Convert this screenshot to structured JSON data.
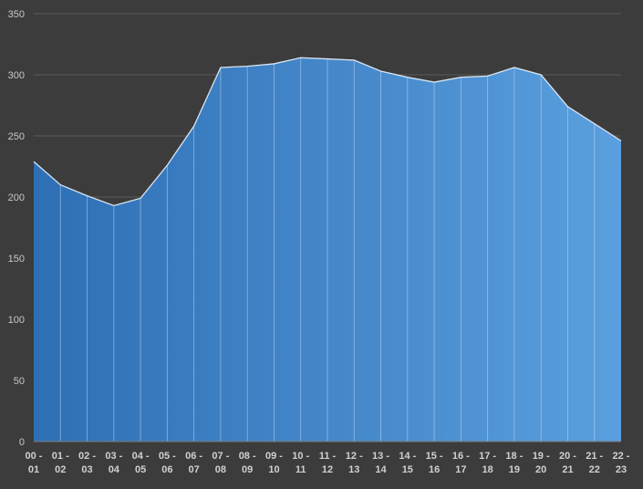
{
  "chart_data": {
    "type": "area",
    "title": "",
    "xlabel": "",
    "ylabel": "",
    "ylim": [
      0,
      350
    ],
    "yticks": [
      0,
      50,
      100,
      150,
      200,
      250,
      300,
      350
    ],
    "grid": true,
    "legend": "none",
    "categories": [
      [
        "00 -",
        "01"
      ],
      [
        "01 -",
        "02"
      ],
      [
        "02 -",
        "03"
      ],
      [
        "03 -",
        "04"
      ],
      [
        "04 -",
        "05"
      ],
      [
        "05 -",
        "06"
      ],
      [
        "06 -",
        "07"
      ],
      [
        "07 -",
        "08"
      ],
      [
        "08 -",
        "09"
      ],
      [
        "09 -",
        "10"
      ],
      [
        "10 -",
        "11"
      ],
      [
        "11 -",
        "12"
      ],
      [
        "12 -",
        "13"
      ],
      [
        "13 -",
        "14"
      ],
      [
        "14 -",
        "15"
      ],
      [
        "15 -",
        "16"
      ],
      [
        "16 -",
        "17"
      ],
      [
        "17 -",
        "18"
      ],
      [
        "18 -",
        "19"
      ],
      [
        "19 -",
        "20"
      ],
      [
        "20 -",
        "21"
      ],
      [
        "21 -",
        "22"
      ],
      [
        "22 -",
        "23"
      ]
    ],
    "values": [
      229,
      210,
      201,
      193,
      199,
      226,
      258,
      306,
      307,
      309,
      314,
      313,
      312,
      303,
      298,
      294,
      298,
      299,
      306,
      300,
      274,
      260,
      246
    ],
    "colors": {
      "background": "#3c3c3c",
      "fill_start": "#2e6fb5",
      "fill_end": "#5a9fde",
      "line": "#d8e4f2",
      "gridline": "#5a5a5a",
      "axis": "#7a7a7a"
    }
  }
}
